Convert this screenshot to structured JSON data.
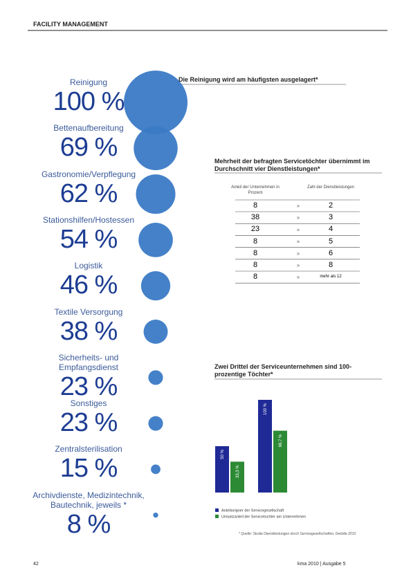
{
  "header": "FACILITY MANAGEMENT",
  "chart_data": [
    {
      "type": "bubble",
      "title": "Die Reinigung wird am häufigsten ausgelagert*",
      "categories": [
        "Reinigung",
        "Bettenaufbereitung",
        "Gastronomie/Verpflegung",
        "Stationshilfen/Hostessen",
        "Logistik",
        "Textile Versorgung",
        "Sicherheits- und Empfangsdienst",
        "Sonstiges",
        "Zentralsterilisation",
        "Archivdienste, Medizintechnik, Bautechnik, jeweils *"
      ],
      "values": [
        100,
        69,
        62,
        54,
        46,
        38,
        23,
        23,
        15,
        8
      ],
      "value_labels": [
        "100 %",
        "69 %",
        "62 %",
        "54 %",
        "46 %",
        "38 %",
        "23 %",
        "23 %",
        "15 %",
        "8 %"
      ],
      "color": "#3b7ac6"
    },
    {
      "type": "bar",
      "title": "Zwei Drittel der Serviceunternehmen sind 100-prozentige Töchter*",
      "categories": [
        null,
        null
      ],
      "series": [
        {
          "name": "Anteilseigner der Servicegesellschaft",
          "color": "#1f2a96",
          "values": [
            50,
            100
          ],
          "value_labels": [
            "50 %",
            "100 %"
          ]
        },
        {
          "name": "Umsatzanteil der Servicetochter am Unternehmen",
          "color": "#2c8a35",
          "values": [
            33.3,
            66.7
          ],
          "value_labels": [
            "33,3 %",
            "66,7 %"
          ]
        }
      ]
    }
  ],
  "table": {
    "title": "Mehrheit der befragten Servicetöchter übernimmt im Durchschnitt vier Dienstleistungen*",
    "columns": [
      "Anteil der Unternehmen in Prozent",
      "Zahl der Dienstleistungen"
    ],
    "rows": [
      [
        8,
        2
      ],
      [
        38,
        3
      ],
      [
        23,
        4
      ],
      [
        8,
        5
      ],
      [
        8,
        6
      ],
      [
        8,
        8
      ],
      [
        8,
        "mehr als 12"
      ]
    ]
  },
  "footnote": "* Quelle: Studie Dienstleistungen durch Servicegesellschaften, Deloitte 2010",
  "footer": {
    "page": "42",
    "text": "kma 2010 | Ausgabe 5"
  }
}
